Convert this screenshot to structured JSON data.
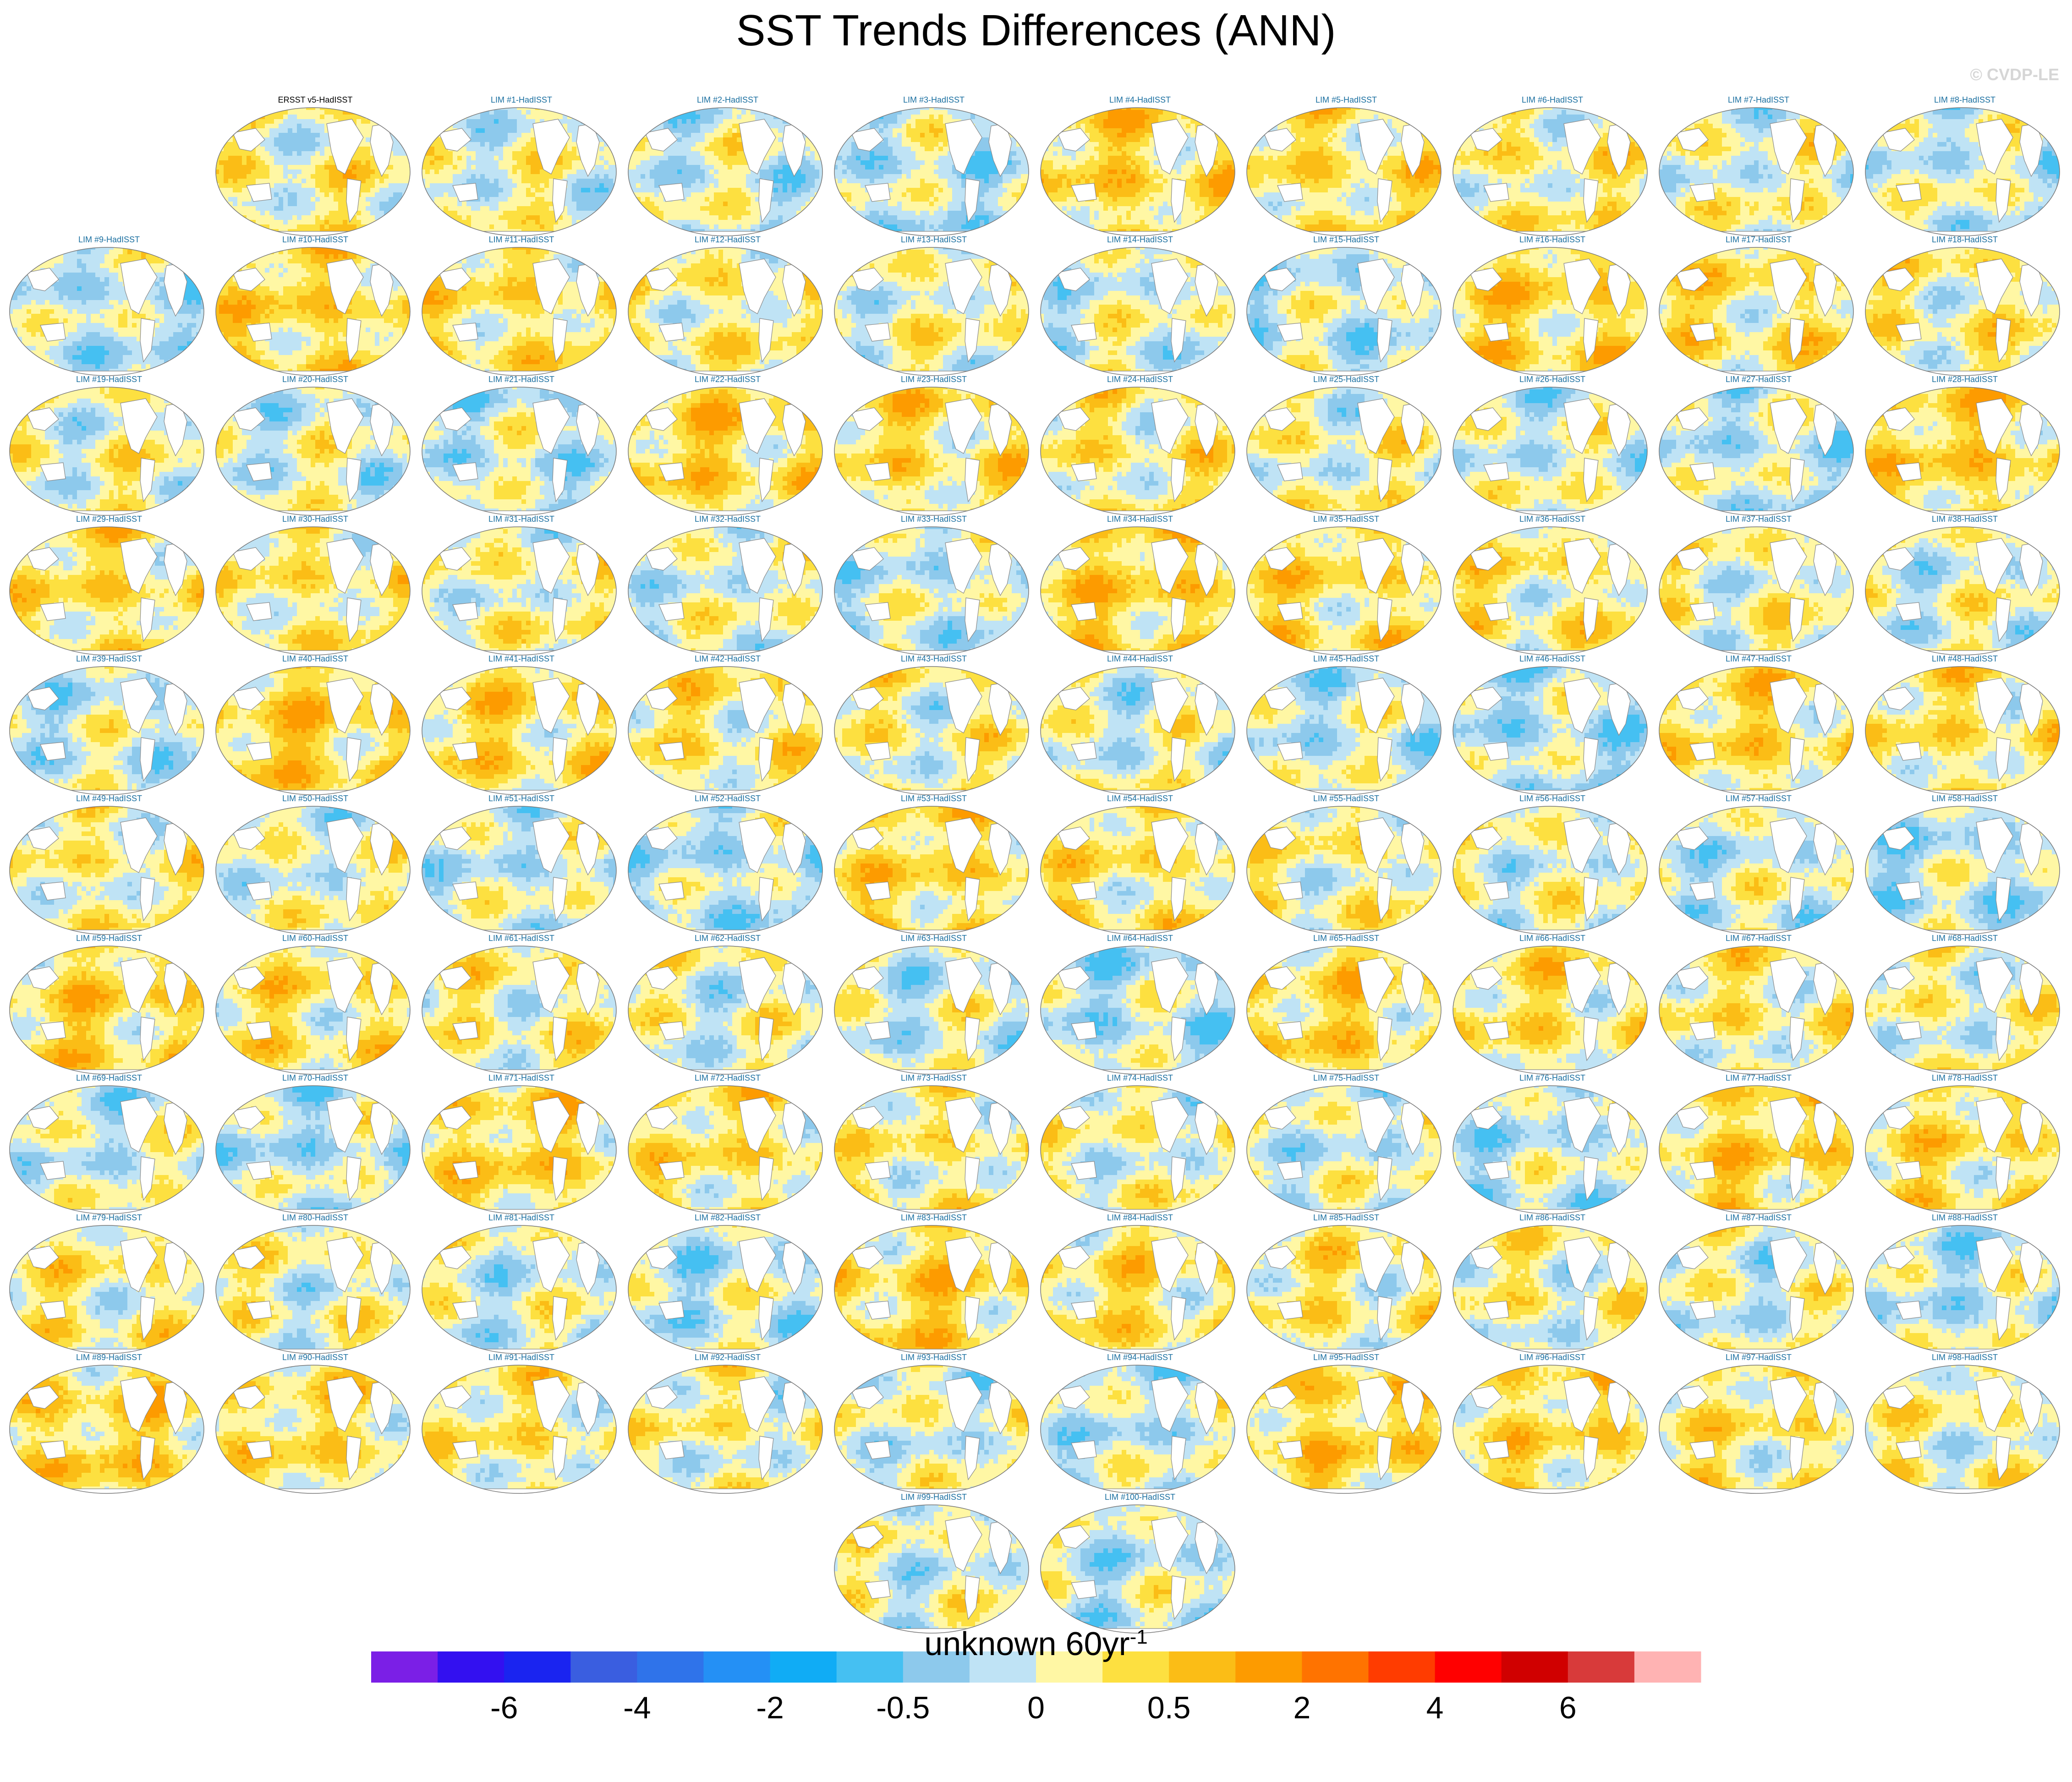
{
  "title": "SST Trends Differences (ANN)",
  "watermark": "© CVDP-LE",
  "chart_data": {
    "type": "heatmap",
    "title": "SST Trends Differences (ANN)",
    "panels": [
      "ERSST v5-HadISST",
      "LIM #1-HadISST",
      "LIM #2-HadISST",
      "LIM #3-HadISST",
      "LIM #4-HadISST",
      "LIM #5-HadISST",
      "LIM #6-HadISST",
      "LIM #7-HadISST",
      "LIM #8-HadISST",
      "LIM #9-HadISST",
      "LIM #10-HadISST",
      "LIM #11-HadISST",
      "LIM #12-HadISST",
      "LIM #13-HadISST",
      "LIM #14-HadISST",
      "LIM #15-HadISST",
      "LIM #16-HadISST",
      "LIM #17-HadISST",
      "LIM #18-HadISST",
      "LIM #19-HadISST",
      "LIM #20-HadISST",
      "LIM #21-HadISST",
      "LIM #22-HadISST",
      "LIM #23-HadISST",
      "LIM #24-HadISST",
      "LIM #25-HadISST",
      "LIM #26-HadISST",
      "LIM #27-HadISST",
      "LIM #28-HadISST",
      "LIM #29-HadISST",
      "LIM #30-HadISST",
      "LIM #31-HadISST",
      "LIM #32-HadISST",
      "LIM #33-HadISST",
      "LIM #34-HadISST",
      "LIM #35-HadISST",
      "LIM #36-HadISST",
      "LIM #37-HadISST",
      "LIM #38-HadISST",
      "LIM #39-HadISST",
      "LIM #40-HadISST",
      "LIM #41-HadISST",
      "LIM #42-HadISST",
      "LIM #43-HadISST",
      "LIM #44-HadISST",
      "LIM #45-HadISST",
      "LIM #46-HadISST",
      "LIM #47-HadISST",
      "LIM #48-HadISST",
      "LIM #49-HadISST",
      "LIM #50-HadISST",
      "LIM #51-HadISST",
      "LIM #52-HadISST",
      "LIM #53-HadISST",
      "LIM #54-HadISST",
      "LIM #55-HadISST",
      "LIM #56-HadISST",
      "LIM #57-HadISST",
      "LIM #58-HadISST",
      "LIM #59-HadISST",
      "LIM #60-HadISST",
      "LIM #61-HadISST",
      "LIM #62-HadISST",
      "LIM #63-HadISST",
      "LIM #64-HadISST",
      "LIM #65-HadISST",
      "LIM #66-HadISST",
      "LIM #67-HadISST",
      "LIM #68-HadISST",
      "LIM #69-HadISST",
      "LIM #70-HadISST",
      "LIM #71-HadISST",
      "LIM #72-HadISST",
      "LIM #73-HadISST",
      "LIM #74-HadISST",
      "LIM #75-HadISST",
      "LIM #76-HadISST",
      "LIM #77-HadISST",
      "LIM #78-HadISST",
      "LIM #79-HadISST",
      "LIM #80-HadISST",
      "LIM #81-HadISST",
      "LIM #82-HadISST",
      "LIM #83-HadISST",
      "LIM #84-HadISST",
      "LIM #85-HadISST",
      "LIM #86-HadISST",
      "LIM #87-HadISST",
      "LIM #88-HadISST",
      "LIM #89-HadISST",
      "LIM #90-HadISST",
      "LIM #91-HadISST",
      "LIM #92-HadISST",
      "LIM #93-HadISST",
      "LIM #94-HadISST",
      "LIM #95-HadISST",
      "LIM #96-HadISST",
      "LIM #97-HadISST",
      "LIM #98-HadISST",
      "LIM #99-HadISST",
      "LIM #100-HadISST"
    ],
    "colorbar": {
      "colors": [
        "#7b1fe6",
        "#3310f0",
        "#1a24f0",
        "#3a5ee0",
        "#2f73ea",
        "#2490f5",
        "#10acf5",
        "#45c0f2",
        "#8dc9ec",
        "#bfe3f5",
        "#fff7a4",
        "#fde040",
        "#fbbd16",
        "#fd9b00",
        "#ff7300",
        "#ff3c00",
        "#ff0000",
        "#d00000",
        "#d83a3a",
        "#ffb3b3"
      ],
      "tick_labels": [
        "-6",
        "-4",
        "-2",
        "-0.5",
        "0",
        "0.5",
        "2",
        "4",
        "6"
      ],
      "tick_boundaries": [
        2,
        4,
        6,
        8,
        10,
        12,
        14,
        16,
        18
      ],
      "label_base": "unknown 60yr",
      "label_sup": "-1"
    }
  }
}
